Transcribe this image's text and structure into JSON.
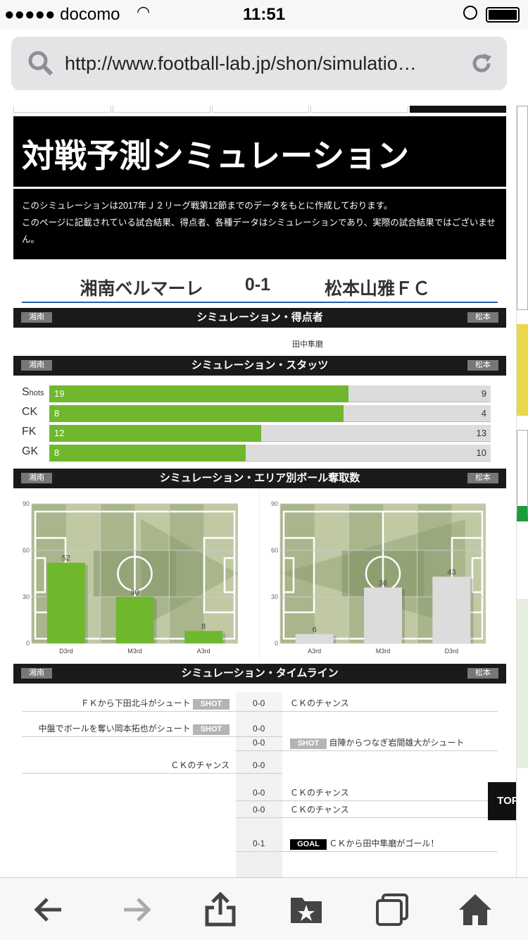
{
  "status_bar": {
    "carrier": "●●●●● docomo",
    "time": "11:51"
  },
  "browser": {
    "url": "http://www.football-lab.jp/shon/simulatio…"
  },
  "page": {
    "title": "対戦予測シミュレーション",
    "notice": [
      "このシミュレーションは2017年Ｊ２リーグ戦第12節までのデータをもとに作成しております。",
      "このページに記載されている試合結果、得点者、各種データはシミュレーションであり、実際の試合結果ではございません。"
    ],
    "match": {
      "home": "湘南ベルマーレ",
      "score": "0-1",
      "away": "松本山雅ＦＣ"
    },
    "home_tag": "湘南",
    "away_tag": "松本",
    "scorers": {
      "title": "シミュレーション・得点者",
      "home": [],
      "away": [
        "田中隼磨"
      ]
    },
    "stats": {
      "title": "シミュレーション・スタッツ",
      "rows": [
        {
          "label": "S",
          "label_small": "hots",
          "home": 19,
          "away": 9
        },
        {
          "label": "CK",
          "home": 8,
          "away": 4
        },
        {
          "label": "FK",
          "home": 12,
          "away": 13
        },
        {
          "label": "GK",
          "home": 8,
          "away": 10
        }
      ]
    },
    "area": {
      "title": "シミュレーション・エリア別ボール奪取数"
    },
    "timeline": {
      "title": "シミュレーション・タイムライン",
      "rows": [
        {
          "side": "both",
          "home_text": "ＦＫから下田北斗がシュート",
          "home_badge": "SHOT",
          "score": "0-0",
          "away_text": "ＣＫのチャンス"
        },
        {
          "side": "home",
          "home_text": "中盤でボールを奪い岡本拓也がシュート",
          "home_badge": "SHOT",
          "score": "0-0"
        },
        {
          "side": "away",
          "away_badge": "SHOT",
          "away_text": "自陣からつなぎ岩間雄大がシュート",
          "score": "0-0"
        },
        {
          "side": "home",
          "home_text": "ＣＫのチャンス",
          "score": "0-0"
        },
        {
          "side": "away",
          "away_text": "ＣＫのチャンス",
          "score": "0-0"
        },
        {
          "side": "away",
          "away_text": "ＣＫのチャンス",
          "score": "0-0"
        },
        {
          "side": "away",
          "away_badge": "GOAL",
          "away_text": "ＣＫから田中隼磨がゴール！",
          "score": "0-1"
        }
      ]
    },
    "top_button": "TOP"
  },
  "colors": {
    "home_bar": "#6fb82d",
    "away_bar": "#dcdcdc",
    "pitch": "#a9b68c",
    "header": "#1a1a1a"
  },
  "chart_data": [
    {
      "type": "bar",
      "categories": [
        "D3rd",
        "M3rd",
        "A3rd"
      ],
      "values": [
        52,
        30,
        8
      ],
      "ylim": [
        0,
        90
      ],
      "yticks": [
        0,
        30,
        60,
        90
      ],
      "color": "#6fb82d"
    },
    {
      "type": "bar",
      "categories": [
        "A3rd",
        "M3rd",
        "D3rd"
      ],
      "values": [
        6,
        36,
        43
      ],
      "ylim": [
        0,
        90
      ],
      "yticks": [
        0,
        30,
        60,
        90
      ],
      "color": "#dcdcdc"
    }
  ],
  "toolbar": {
    "icons": [
      "back-icon",
      "forward-icon",
      "share-icon",
      "bookmarks-icon",
      "tabs-icon",
      "home-icon"
    ]
  }
}
